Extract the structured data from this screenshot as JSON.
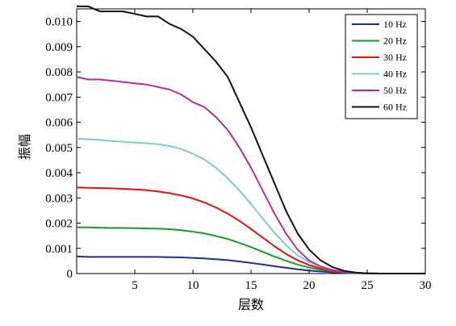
{
  "chart_data": {
    "type": "line",
    "xlabel": "层数",
    "ylabel": "振幅",
    "xlim": [
      0,
      30
    ],
    "ylim": [
      0,
      0.0105
    ],
    "xticks": [
      5,
      10,
      15,
      20,
      25,
      30
    ],
    "xtick_labels": [
      "5",
      "10",
      "15",
      "20",
      "25",
      "30"
    ],
    "yticks": [
      0,
      0.001,
      0.002,
      0.003,
      0.004,
      0.005,
      0.006,
      0.007,
      0.008,
      0.009,
      0.01
    ],
    "ytick_labels": [
      "0",
      "0.001",
      "0.002",
      "0.003",
      "0.004",
      "0.005",
      "0.006",
      "0.007",
      "0.008",
      "0.009",
      "0.010"
    ],
    "grid": false,
    "legend_position": "top-right",
    "x": [
      0,
      1,
      2,
      3,
      4,
      5,
      6,
      7,
      8,
      9,
      10,
      11,
      12,
      13,
      14,
      15,
      16,
      17,
      18,
      19,
      20,
      21,
      22,
      23,
      24,
      25,
      26,
      27,
      28,
      29,
      30
    ],
    "series": [
      {
        "name": "10 Hz",
        "color": "#1f2f8f",
        "values": [
          0.00068,
          0.00066,
          0.00066,
          0.00066,
          0.00066,
          0.00066,
          0.00066,
          0.00066,
          0.00065,
          0.00064,
          0.00062,
          0.0006,
          0.00057,
          0.00053,
          0.00048,
          0.00042,
          0.00036,
          0.00029,
          0.00023,
          0.00017,
          0.00012,
          8e-05,
          5e-05,
          3e-05,
          1e-05,
          5e-06,
          0,
          0,
          0,
          0,
          0
        ]
      },
      {
        "name": "20 Hz",
        "color": "#1a9a2a",
        "values": [
          0.00183,
          0.00183,
          0.00182,
          0.00181,
          0.00181,
          0.0018,
          0.00179,
          0.00178,
          0.00176,
          0.00172,
          0.00166,
          0.00159,
          0.00149,
          0.00137,
          0.00122,
          0.00105,
          0.00086,
          0.00068,
          0.00051,
          0.00036,
          0.00024,
          0.00015,
          9e-05,
          5e-05,
          2e-05,
          1e-05,
          0,
          0,
          0,
          0,
          0
        ]
      },
      {
        "name": "30 Hz",
        "color": "#e01010",
        "values": [
          0.00342,
          0.0034,
          0.00339,
          0.00338,
          0.00336,
          0.00334,
          0.00331,
          0.00326,
          0.00319,
          0.0031,
          0.00298,
          0.00282,
          0.00262,
          0.00238,
          0.00209,
          0.00177,
          0.00143,
          0.00109,
          0.00078,
          0.00053,
          0.00034,
          0.0002,
          0.00011,
          6e-05,
          3e-05,
          1e-05,
          0,
          0,
          0,
          0,
          0
        ]
      },
      {
        "name": "40 Hz",
        "color": "#7fcccc",
        "values": [
          0.00535,
          0.00533,
          0.0053,
          0.00526,
          0.00523,
          0.0052,
          0.00517,
          0.00513,
          0.00506,
          0.00494,
          0.00475,
          0.00452,
          0.00419,
          0.00378,
          0.0033,
          0.00276,
          0.00219,
          0.00163,
          0.00113,
          0.00073,
          0.00045,
          0.00026,
          0.00014,
          7e-05,
          3e-05,
          1e-05,
          0,
          0,
          0,
          0,
          0
        ]
      },
      {
        "name": "50 Hz",
        "color": "#b0309a",
        "values": [
          0.0078,
          0.0077,
          0.0077,
          0.00765,
          0.0076,
          0.00755,
          0.0075,
          0.0074,
          0.0073,
          0.0071,
          0.0068,
          0.0066,
          0.0062,
          0.0057,
          0.005,
          0.0042,
          0.0033,
          0.0024,
          0.0016,
          0.00095,
          0.00052,
          0.00028,
          0.00014,
          7e-05,
          3e-05,
          1e-05,
          0,
          0,
          0,
          0,
          0
        ]
      },
      {
        "name": "60 Hz",
        "color": "#111111",
        "values": [
          0.0106,
          0.0106,
          0.0104,
          0.0104,
          0.0104,
          0.0103,
          0.0102,
          0.0102,
          0.0099,
          0.0097,
          0.0094,
          0.0089,
          0.0084,
          0.0078,
          0.0068,
          0.0058,
          0.0047,
          0.0036,
          0.0025,
          0.0016,
          0.00095,
          0.00052,
          0.00026,
          0.00011,
          4e-05,
          1e-05,
          0,
          0,
          0,
          0,
          0
        ]
      }
    ]
  }
}
